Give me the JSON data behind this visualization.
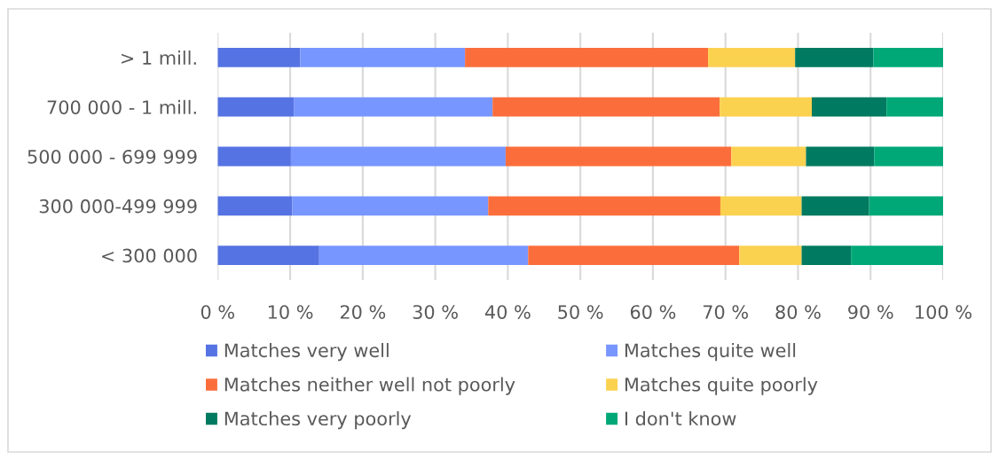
{
  "chart_data": {
    "type": "bar",
    "orientation": "horizontal",
    "stacked": true,
    "categories": [
      "> 1 mill.",
      "700 000 - 1 mill.",
      "500 000 - 699 999",
      "300 000-499 999",
      "< 300 000"
    ],
    "series": [
      {
        "name": "Matches very well",
        "color": "#5573e3",
        "values": [
          11.4,
          10.5,
          10.1,
          10.3,
          14.0
        ]
      },
      {
        "name": "Matches quite well",
        "color": "#7896ff",
        "values": [
          22.7,
          27.4,
          29.6,
          27.0,
          28.8
        ]
      },
      {
        "name": "Matches neither well not poorly",
        "color": "#fb6e3c",
        "values": [
          33.5,
          31.3,
          31.1,
          32.0,
          29.1
        ]
      },
      {
        "name": "Matches quite poorly",
        "color": "#fbd150",
        "values": [
          12.0,
          12.7,
          10.3,
          11.2,
          8.6
        ]
      },
      {
        "name": "Matches very poorly",
        "color": "#007a60",
        "values": [
          10.8,
          10.3,
          9.4,
          9.3,
          6.8
        ]
      },
      {
        "name": "I don't know",
        "color": "#00a878",
        "values": [
          9.6,
          7.8,
          9.5,
          10.2,
          12.7
        ]
      }
    ],
    "xlim": [
      0,
      100
    ],
    "xticks": [
      {
        "value": 0,
        "label": "0 %"
      },
      {
        "value": 10,
        "label": "10 %"
      },
      {
        "value": 20,
        "label": "20 %"
      },
      {
        "value": 30,
        "label": "30 %"
      },
      {
        "value": 40,
        "label": "40 %"
      },
      {
        "value": 50,
        "label": "50 %"
      },
      {
        "value": 60,
        "label": "60 %"
      },
      {
        "value": 70,
        "label": "70 %"
      },
      {
        "value": 80,
        "label": "80 %"
      },
      {
        "value": 90,
        "label": "90 %"
      },
      {
        "value": 100,
        "label": "100 %"
      }
    ],
    "grid": "x",
    "legend": "bottom"
  }
}
